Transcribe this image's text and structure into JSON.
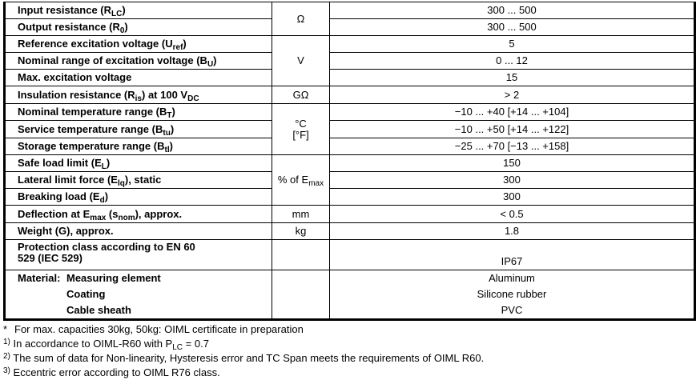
{
  "rows": [
    {
      "label": [
        [
          "Input resistance (R",
          ""
        ],
        [
          "LC",
          "sub"
        ],
        [
          ")",
          ""
        ]
      ],
      "value": "300 ... 500"
    },
    {
      "label": [
        [
          "Output resistance (R",
          ""
        ],
        [
          "0",
          "sub"
        ],
        [
          ")",
          ""
        ]
      ],
      "value": "300 ... 500"
    },
    {
      "label": [
        [
          "Reference excitation voltage (U",
          ""
        ],
        [
          "ref",
          "sub"
        ],
        [
          ")",
          ""
        ]
      ],
      "value": "5"
    },
    {
      "label": [
        [
          "Nominal range of excitation voltage (B",
          ""
        ],
        [
          "U",
          "sub"
        ],
        [
          ")",
          ""
        ]
      ],
      "value": "0 ... 12"
    },
    {
      "label": [
        [
          "Max. excitation voltage",
          ""
        ]
      ],
      "value": "15"
    },
    {
      "label": [
        [
          "Insulation resistance (R",
          ""
        ],
        [
          "is",
          "sub"
        ],
        [
          ") at 100 V",
          ""
        ],
        [
          "DC",
          "sub"
        ]
      ],
      "value": "> 2"
    },
    {
      "label": [
        [
          "Nominal temperature range (B",
          ""
        ],
        [
          "T",
          "sub"
        ],
        [
          ")",
          ""
        ]
      ],
      "value": "−10 ... +40 [+14 ... +104]"
    },
    {
      "label": [
        [
          "Service temperature range (B",
          ""
        ],
        [
          "tu",
          "sub"
        ],
        [
          ")",
          ""
        ]
      ],
      "value": "−10 ... +50 [+14 ... +122]"
    },
    {
      "label": [
        [
          "Storage temperature range (B",
          ""
        ],
        [
          "tl",
          "sub"
        ],
        [
          ")",
          ""
        ]
      ],
      "value": "−25 ... +70 [−13 ... +158]"
    },
    {
      "label": [
        [
          "Safe load limit (E",
          ""
        ],
        [
          "L",
          "sub"
        ],
        [
          ")",
          ""
        ]
      ],
      "value": "150"
    },
    {
      "label": [
        [
          "Lateral limit force (E",
          ""
        ],
        [
          "lq",
          "sub"
        ],
        [
          "), static",
          ""
        ]
      ],
      "value": "300"
    },
    {
      "label": [
        [
          "Breaking load (E",
          ""
        ],
        [
          "d",
          "sub"
        ],
        [
          ")",
          ""
        ]
      ],
      "value": "300"
    },
    {
      "label": [
        [
          "Deflection at E",
          ""
        ],
        [
          "max",
          "sub"
        ],
        [
          " (s",
          ""
        ],
        [
          "nom",
          "sub"
        ],
        [
          "), approx.",
          ""
        ]
      ],
      "value": "< 0.5"
    },
    {
      "label": [
        [
          "Weight (G), approx.",
          ""
        ]
      ],
      "value": "1.8"
    },
    {
      "label": [
        [
          "Protection class according to EN 60 529 (IEC 529)",
          ""
        ]
      ],
      "value": "IP67"
    }
  ],
  "units": {
    "ohm": [
      [
        "Ω",
        ""
      ]
    ],
    "volt": [
      [
        "V",
        ""
      ]
    ],
    "gohm": [
      [
        "GΩ",
        ""
      ]
    ],
    "temp": [
      [
        "°C",
        ""
      ],
      [
        "[°F]",
        "br"
      ]
    ],
    "pct": [
      [
        "% of E",
        ""
      ],
      [
        "max",
        "sub"
      ]
    ],
    "mm": [
      [
        "mm",
        ""
      ]
    ],
    "kg": [
      [
        "kg",
        ""
      ]
    ]
  },
  "material": {
    "key": "Material:",
    "items": [
      {
        "label": "Measuring element",
        "value": "Aluminum"
      },
      {
        "label": "Coating",
        "value": "Silicone rubber"
      },
      {
        "label": "Cable sheath",
        "value": "PVC"
      }
    ]
  },
  "footnotes": [
    {
      "mark": "*",
      "text": [
        [
          "For max. capacities 30kg, 50kg: OIML certificate in preparation",
          ""
        ]
      ]
    },
    {
      "mark": "1)",
      "text": [
        [
          "In accordance to OIML-R60 with P",
          ""
        ],
        [
          "LC",
          "sub"
        ],
        [
          " = 0.7",
          ""
        ]
      ]
    },
    {
      "mark": "2)",
      "text": [
        [
          "The sum of data for Non-linearity, Hysteresis error and TC Span meets the requirements of OIML R60.",
          ""
        ]
      ]
    },
    {
      "mark": "3)",
      "text": [
        [
          "Eccentric error according to OIML R76 class.",
          ""
        ]
      ]
    }
  ]
}
